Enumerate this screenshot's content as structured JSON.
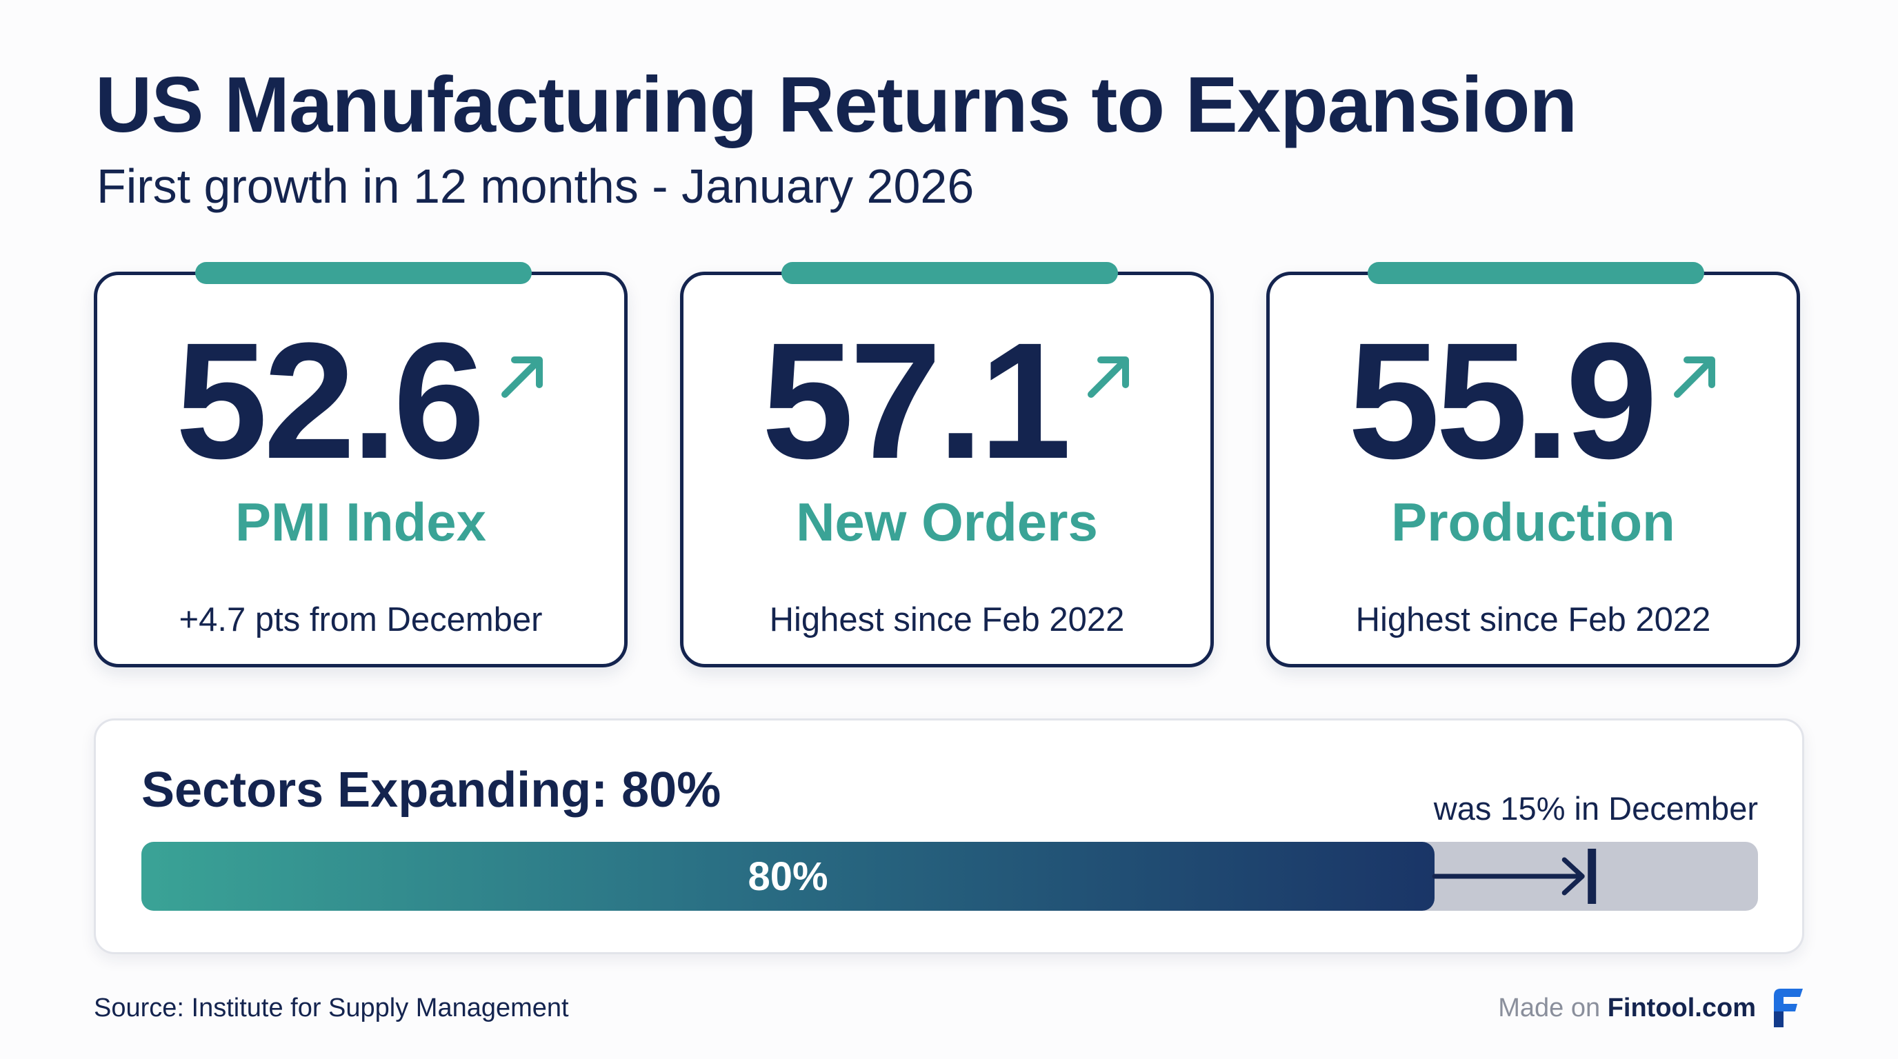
{
  "header": {
    "title": "US Manufacturing Returns to Expansion",
    "subtitle": "First growth in 12 months - January 2026"
  },
  "metrics": [
    {
      "value": "52.6",
      "label": "PMI Index",
      "note": "+4.7 pts from December",
      "trend_icon": "arrow-up-right-icon"
    },
    {
      "value": "57.1",
      "label": "New Orders",
      "note": "Highest since Feb 2022",
      "trend_icon": "arrow-up-right-icon"
    },
    {
      "value": "55.9",
      "label": "Production",
      "note": "Highest since Feb 2022",
      "trend_icon": "arrow-up-right-icon"
    }
  ],
  "sectors": {
    "title": "Sectors Expanding: 80%",
    "previous_note": "was 15% in December",
    "bar_label": "80%",
    "current_percent": 80,
    "previous_percent": 15
  },
  "footer": {
    "source": "Source: Institute for Supply Management",
    "made_on_prefix": "Made on",
    "brand": "Fintool.com"
  },
  "colors": {
    "navy": "#14244f",
    "teal": "#3aa396",
    "track": "#c5c8d2",
    "logo_blue": "#1e6fe0",
    "logo_dark": "#123a8a"
  }
}
